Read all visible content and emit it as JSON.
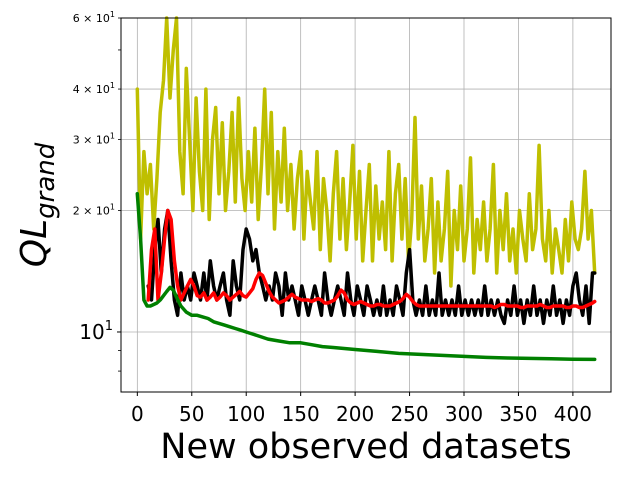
{
  "chart_data": {
    "type": "line",
    "xlabel": "New observed datasets",
    "ylabel_main": "QL",
    "ylabel_sub": "grand",
    "x_scale": "linear",
    "y_scale": "log",
    "xlim": [
      -15,
      435
    ],
    "ylim": [
      7.1,
      60
    ],
    "grid": true,
    "x_ticks": [
      0,
      50,
      100,
      150,
      200,
      250,
      300,
      350,
      400
    ],
    "y_major_ticks": [
      {
        "value": 10,
        "base": "10",
        "exp": "1"
      }
    ],
    "y_minor_labeled_ticks": [
      {
        "value": 20,
        "coef": "2",
        "base": "10",
        "exp": "1"
      },
      {
        "value": 30,
        "coef": "3",
        "base": "10",
        "exp": "1"
      },
      {
        "value": 40,
        "coef": "4",
        "base": "10",
        "exp": "1"
      },
      {
        "value": 60,
        "coef": "6",
        "base": "10",
        "exp": "1"
      }
    ],
    "y_minor_unlabeled_ticks": [
      8,
      9,
      50
    ],
    "series": [
      {
        "color": "#bfbf00",
        "x": [
          0,
          3,
          6,
          9,
          12,
          15,
          18,
          21,
          24,
          27,
          30,
          33,
          36,
          39,
          42,
          45,
          48,
          51,
          54,
          57,
          60,
          63,
          66,
          69,
          72,
          75,
          78,
          81,
          84,
          87,
          90,
          93,
          96,
          99,
          102,
          105,
          108,
          111,
          114,
          117,
          120,
          123,
          126,
          129,
          132,
          135,
          138,
          141,
          144,
          147,
          150,
          153,
          156,
          159,
          162,
          165,
          168,
          171,
          174,
          177,
          180,
          183,
          186,
          189,
          192,
          195,
          198,
          201,
          204,
          207,
          210,
          213,
          216,
          219,
          222,
          225,
          228,
          231,
          234,
          237,
          240,
          243,
          246,
          249,
          252,
          255,
          258,
          261,
          264,
          267,
          270,
          273,
          276,
          279,
          282,
          285,
          288,
          291,
          294,
          297,
          300,
          303,
          306,
          309,
          312,
          315,
          318,
          321,
          324,
          327,
          330,
          333,
          336,
          339,
          342,
          345,
          348,
          351,
          354,
          357,
          360,
          363,
          366,
          369,
          372,
          375,
          378,
          381,
          384,
          387,
          390,
          393,
          396,
          399,
          402,
          405,
          408,
          411,
          414,
          417,
          420
        ],
        "y": [
          40,
          17,
          28,
          22,
          26,
          18,
          24,
          35,
          42,
          60,
          38,
          50,
          60,
          28,
          22,
          45,
          30,
          20,
          38,
          25,
          20,
          40,
          19,
          30,
          36,
          22,
          33,
          20,
          25,
          35,
          21,
          38,
          24,
          20,
          28,
          21,
          32,
          19,
          26,
          40,
          22,
          35,
          18,
          28,
          21,
          32,
          20,
          26,
          18,
          24,
          28,
          17,
          25,
          21,
          18,
          28,
          16,
          24,
          20,
          15,
          22,
          28,
          17,
          24,
          16,
          21,
          29,
          17,
          25,
          15,
          20,
          26,
          15,
          23,
          17,
          21,
          16,
          28,
          15,
          22,
          26,
          17,
          24,
          15,
          19,
          34,
          17,
          23,
          15,
          18,
          24,
          14,
          21,
          15,
          18,
          25,
          13,
          20,
          16,
          23,
          15,
          18,
          27,
          14,
          19,
          16,
          21,
          15,
          18,
          26,
          14,
          20,
          16,
          22,
          15,
          18,
          14,
          20,
          17,
          15,
          22,
          16,
          18,
          29,
          17,
          15,
          20,
          14,
          18,
          16,
          14,
          19,
          15,
          21,
          17,
          16,
          18,
          25,
          17,
          20,
          14
        ]
      },
      {
        "color": "#000000",
        "x": [
          10,
          13,
          16,
          19,
          22,
          25,
          28,
          31,
          34,
          37,
          40,
          43,
          46,
          49,
          52,
          55,
          58,
          61,
          64,
          67,
          70,
          73,
          76,
          79,
          82,
          85,
          88,
          91,
          94,
          97,
          100,
          103,
          106,
          109,
          112,
          115,
          118,
          121,
          124,
          127,
          130,
          133,
          136,
          139,
          142,
          145,
          148,
          151,
          154,
          157,
          160,
          163,
          166,
          169,
          172,
          175,
          178,
          181,
          184,
          187,
          190,
          193,
          196,
          199,
          202,
          205,
          208,
          211,
          214,
          217,
          220,
          223,
          226,
          229,
          232,
          235,
          238,
          241,
          244,
          247,
          250,
          253,
          256,
          259,
          262,
          265,
          268,
          271,
          274,
          277,
          280,
          283,
          286,
          289,
          292,
          295,
          298,
          301,
          304,
          307,
          310,
          313,
          316,
          319,
          322,
          325,
          328,
          331,
          334,
          337,
          340,
          343,
          346,
          349,
          352,
          355,
          358,
          361,
          364,
          367,
          370,
          373,
          376,
          379,
          382,
          385,
          388,
          391,
          394,
          397,
          400,
          403,
          406,
          409,
          412,
          415,
          418,
          420
        ],
        "y": [
          13,
          12,
          16,
          19,
          14,
          18,
          20,
          15,
          12,
          11,
          14,
          12,
          13,
          12,
          14,
          13,
          12,
          14,
          12,
          15,
          13,
          12,
          13,
          14,
          12,
          11,
          15,
          13,
          12,
          16,
          18,
          17,
          15,
          16,
          14,
          13,
          12,
          13,
          12,
          14,
          13,
          11,
          14,
          12,
          13,
          12,
          11,
          13,
          12,
          11,
          12,
          13,
          12,
          11,
          14,
          12,
          11,
          12,
          13,
          12,
          11,
          14,
          12,
          11,
          13,
          12,
          11,
          13,
          12,
          11,
          12,
          11,
          13,
          11,
          12,
          11,
          13,
          12,
          11,
          14,
          16,
          12,
          11,
          12,
          11,
          13,
          11,
          12,
          11,
          14,
          11,
          12,
          11,
          12,
          11,
          13,
          11,
          12,
          11,
          12,
          11,
          12,
          11,
          13,
          11,
          12,
          11,
          12,
          11,
          10.5,
          12,
          11,
          13,
          11,
          12,
          10.5,
          12,
          11,
          13,
          11,
          12,
          10.5,
          12,
          11,
          13,
          11,
          12,
          10.5,
          12,
          11,
          13,
          14,
          12,
          11,
          13,
          10.5,
          14,
          14
        ]
      },
      {
        "color": "#ff0000",
        "x": [
          10,
          13,
          16,
          19,
          22,
          25,
          28,
          31,
          34,
          37,
          40,
          43,
          46,
          49,
          52,
          55,
          58,
          61,
          64,
          67,
          70,
          73,
          76,
          79,
          82,
          85,
          88,
          91,
          94,
          97,
          100,
          103,
          106,
          109,
          112,
          115,
          118,
          121,
          124,
          127,
          130,
          133,
          136,
          139,
          142,
          145,
          148,
          151,
          154,
          157,
          160,
          163,
          166,
          169,
          172,
          175,
          178,
          181,
          184,
          187,
          190,
          193,
          196,
          199,
          202,
          205,
          208,
          211,
          214,
          217,
          220,
          223,
          226,
          229,
          232,
          235,
          238,
          241,
          244,
          247,
          250,
          253,
          256,
          259,
          262,
          265,
          268,
          271,
          274,
          277,
          280,
          283,
          286,
          289,
          292,
          295,
          298,
          301,
          304,
          307,
          310,
          313,
          316,
          319,
          322,
          325,
          328,
          331,
          334,
          337,
          340,
          343,
          346,
          349,
          352,
          355,
          358,
          361,
          364,
          367,
          370,
          373,
          376,
          379,
          382,
          385,
          388,
          391,
          394,
          397,
          400,
          403,
          406,
          409,
          412,
          415,
          418,
          420
        ],
        "y": [
          12,
          16,
          18,
          12,
          14,
          17,
          20,
          19,
          15,
          13,
          12,
          12.5,
          13,
          13.5,
          13,
          12.3,
          12.2,
          12.5,
          12,
          12.2,
          12.5,
          12,
          12.2,
          12.5,
          12.3,
          12,
          12.2,
          12.4,
          12.6,
          12.3,
          12.2,
          12.5,
          12.8,
          13.5,
          14,
          13.8,
          13.2,
          12.6,
          12.2,
          12,
          11.8,
          11.9,
          12,
          12.2,
          12.4,
          12.2,
          12.1,
          12,
          12,
          12,
          11.9,
          12,
          12.1,
          12,
          11.8,
          11.8,
          11.9,
          12,
          12.3,
          12.7,
          12.5,
          12,
          11.8,
          11.7,
          11.8,
          11.9,
          11.8,
          11.7,
          11.6,
          11.6,
          11.7,
          11.7,
          11.6,
          11.6,
          11.6,
          11.7,
          11.8,
          11.9,
          12.1,
          12.4,
          12.2,
          11.9,
          11.7,
          11.6,
          11.6,
          11.6,
          11.6,
          11.6,
          11.6,
          11.6,
          11.6,
          11.6,
          11.6,
          11.6,
          11.6,
          11.6,
          11.6,
          11.6,
          11.6,
          11.6,
          11.6,
          11.6,
          11.6,
          11.6,
          11.6,
          11.6,
          11.5,
          11.6,
          11.7,
          11.7,
          11.6,
          11.6,
          11.6,
          11.6,
          11.5,
          11.5,
          11.6,
          11.6,
          11.6,
          11.6,
          11.7,
          11.6,
          11.5,
          11.5,
          11.6,
          11.6,
          11.6,
          11.6,
          11.5,
          11.5,
          11.6,
          11.6,
          11.5,
          11.5,
          11.6,
          11.7,
          11.8,
          11.9
        ]
      },
      {
        "color": "#008000",
        "x": [
          0,
          3,
          6,
          9,
          12,
          15,
          18,
          21,
          24,
          27,
          30,
          33,
          36,
          40,
          45,
          50,
          55,
          60,
          65,
          70,
          75,
          80,
          85,
          90,
          95,
          100,
          110,
          120,
          130,
          140,
          150,
          160,
          170,
          180,
          190,
          200,
          220,
          240,
          260,
          280,
          300,
          320,
          340,
          360,
          380,
          400,
          420
        ],
        "y": [
          22,
          17,
          12,
          11.6,
          11.6,
          11.7,
          11.8,
          12,
          12.3,
          12.6,
          12.9,
          12.7,
          12.2,
          11.6,
          11.2,
          11,
          11,
          10.9,
          10.8,
          10.6,
          10.5,
          10.4,
          10.3,
          10.2,
          10.1,
          10,
          9.8,
          9.6,
          9.5,
          9.4,
          9.4,
          9.3,
          9.2,
          9.15,
          9.1,
          9.05,
          8.95,
          8.85,
          8.8,
          8.75,
          8.7,
          8.65,
          8.62,
          8.6,
          8.58,
          8.56,
          8.55
        ]
      }
    ]
  }
}
